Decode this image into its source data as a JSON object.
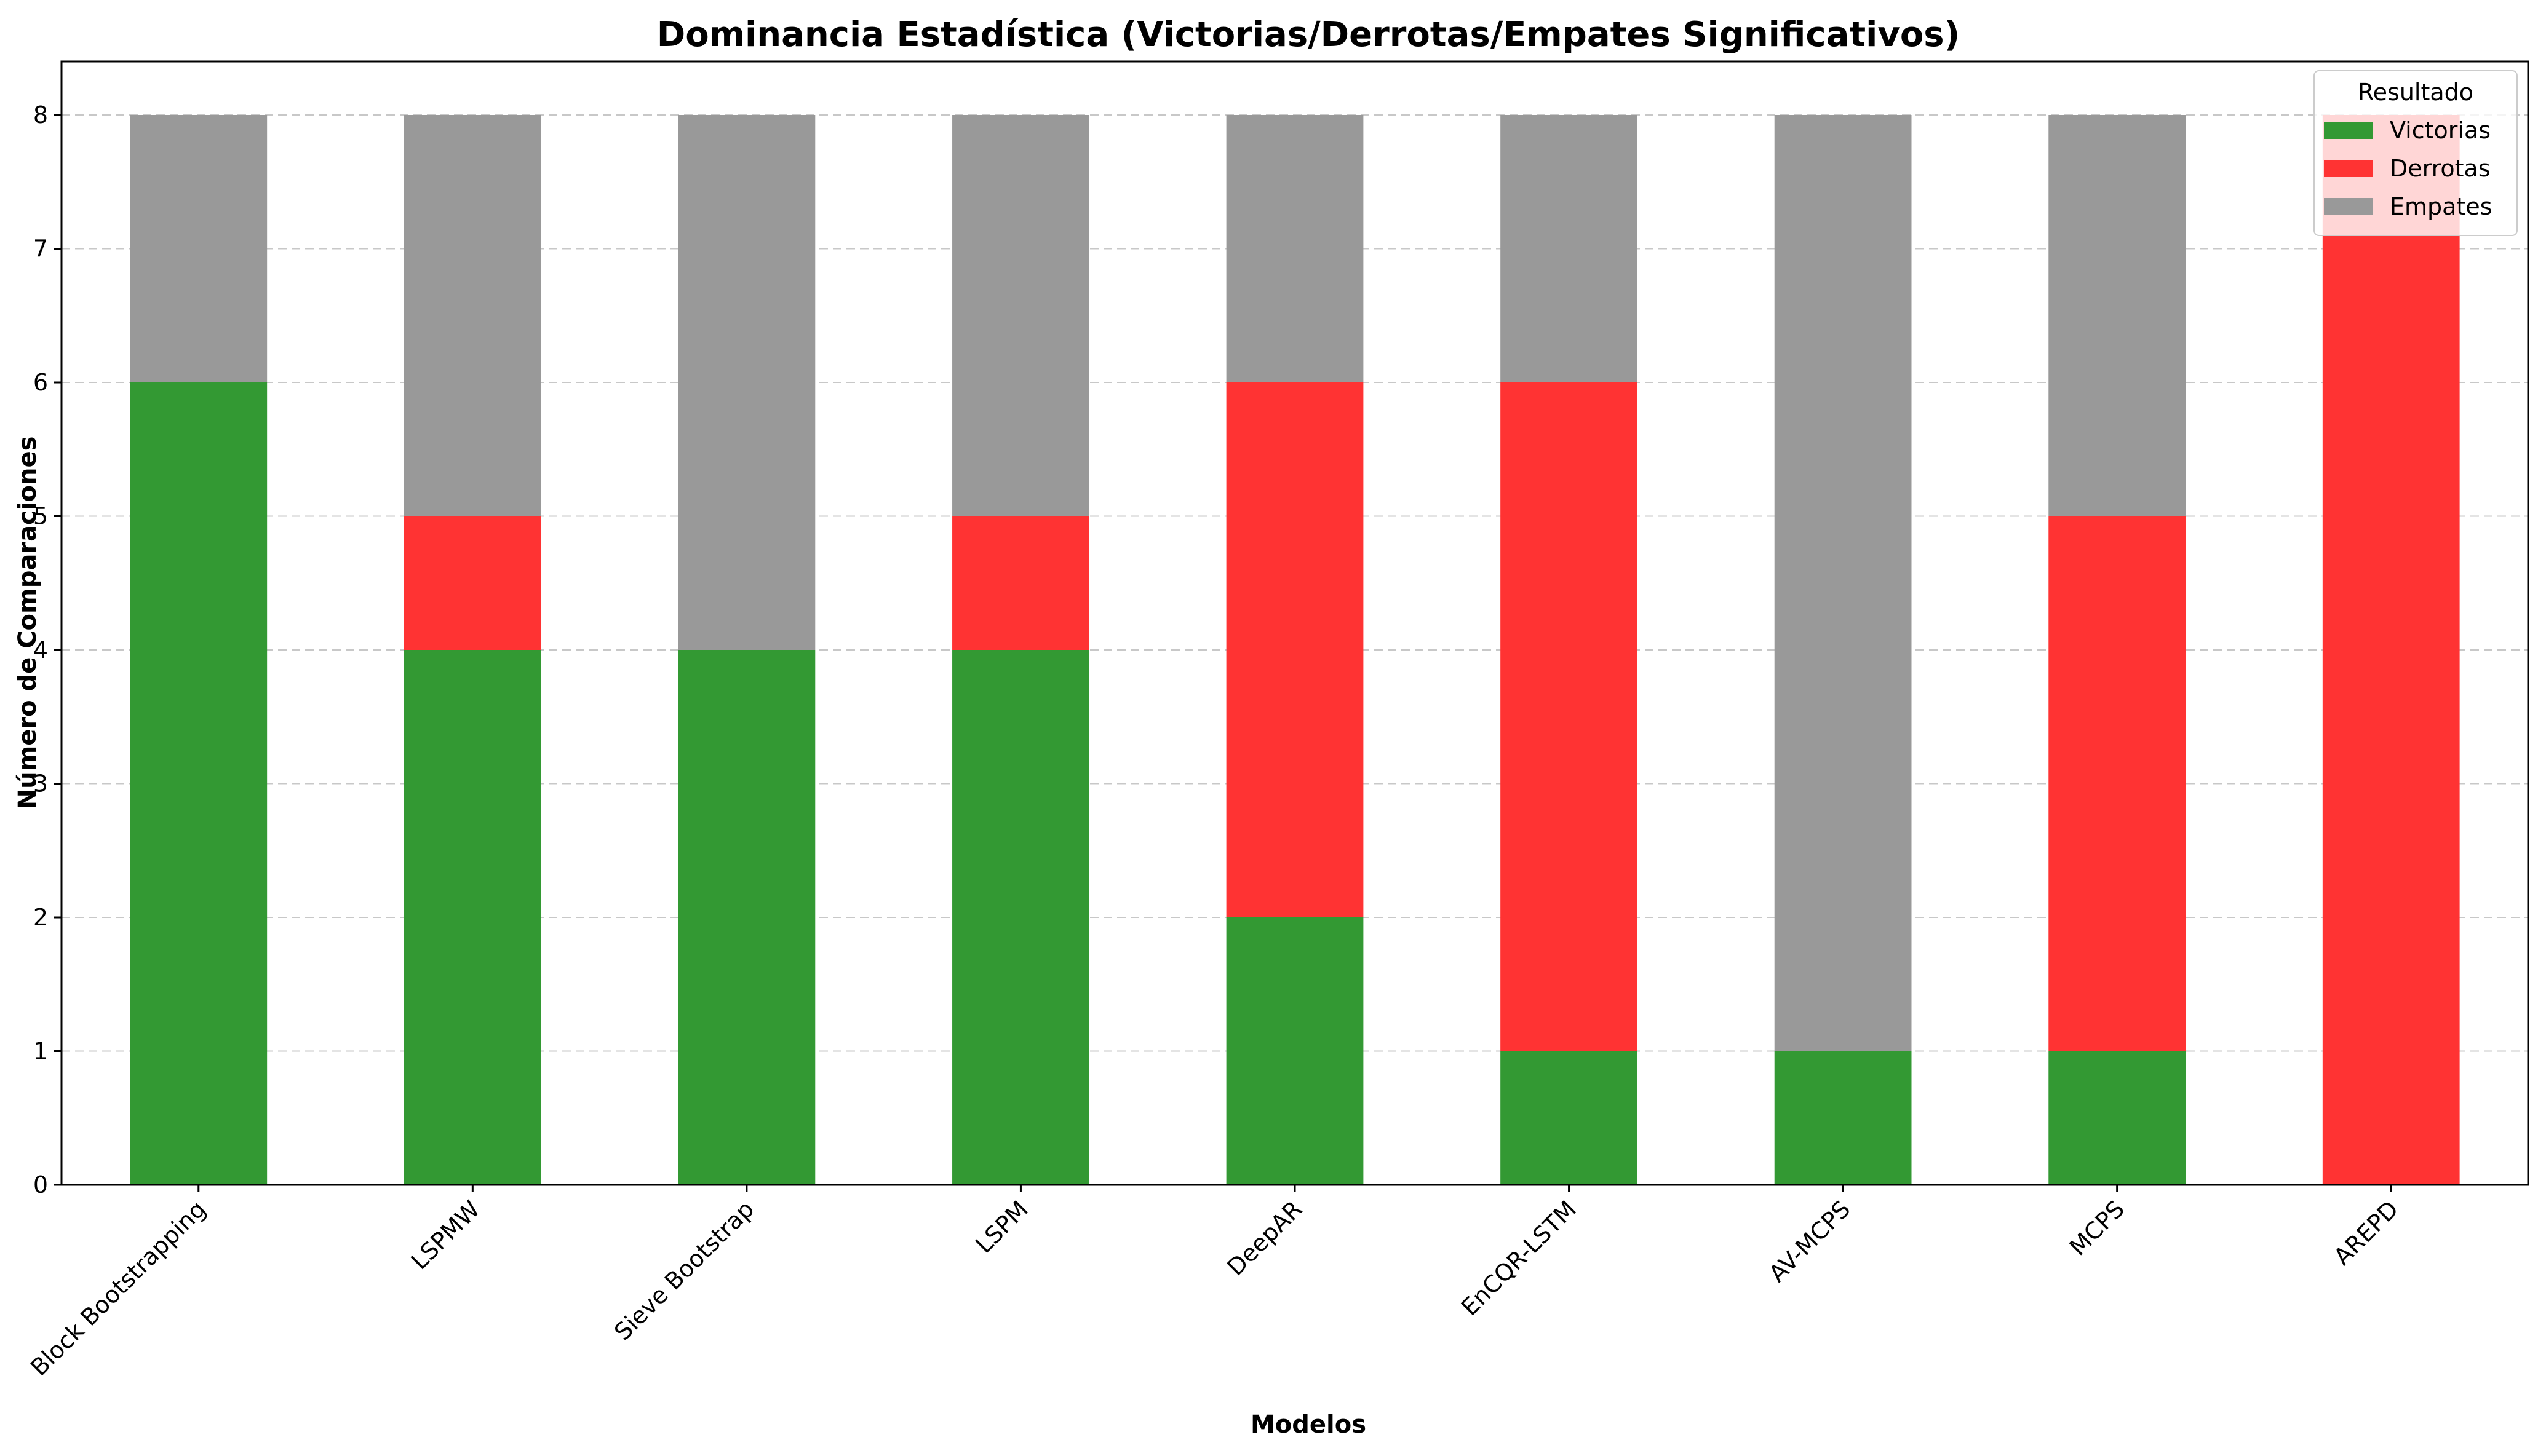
{
  "chart_data": {
    "type": "bar",
    "stacked": true,
    "title": "Dominancia Estadística (Victorias/Derrotas/Empates Significativos)",
    "xlabel": "Modelos",
    "ylabel": "Número de Comparaciones",
    "ylim": [
      0,
      8.4
    ],
    "yticks": [
      "0",
      "1",
      "2",
      "3",
      "4",
      "5",
      "6",
      "7",
      "8"
    ],
    "grid": "horizontal dashed",
    "legend": {
      "title": "Resultado",
      "position": "top-right"
    },
    "categories": [
      "Block Bootstrapping",
      "LSPMW",
      "Sieve Bootstrap",
      "LSPM",
      "DeepAR",
      "EnCQR-LSTM",
      "AV-MCPS",
      "MCPS",
      "AREPD"
    ],
    "series": [
      {
        "name": "Victorias",
        "color": "#339933",
        "values": [
          6,
          4,
          4,
          4,
          2,
          1,
          1,
          1,
          0
        ]
      },
      {
        "name": "Derrotas",
        "color": "#ff3333",
        "values": [
          0,
          1,
          0,
          1,
          4,
          5,
          0,
          4,
          8
        ]
      },
      {
        "name": "Empates",
        "color": "#999999",
        "values": [
          2,
          3,
          4,
          3,
          2,
          2,
          7,
          3,
          0
        ]
      }
    ]
  }
}
